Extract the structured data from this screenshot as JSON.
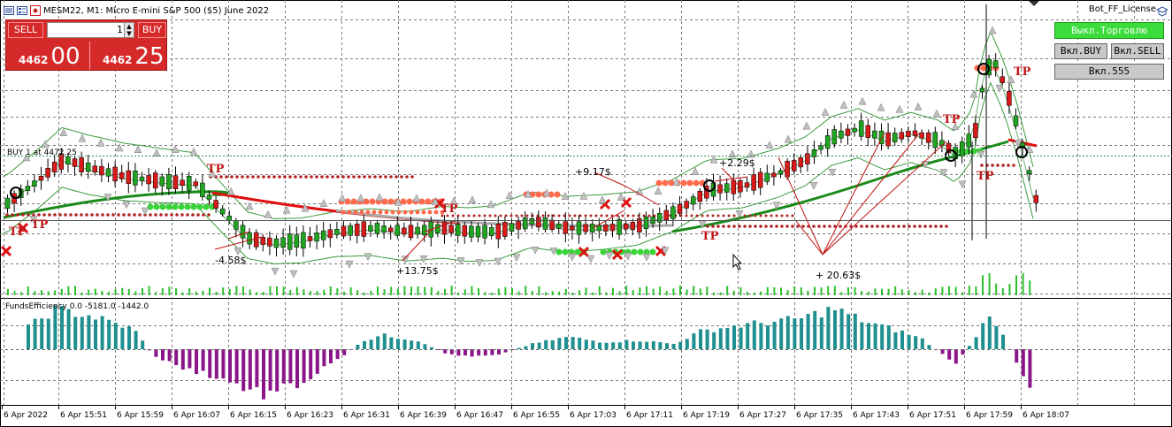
{
  "window": {
    "title": "MESM22, M1:  Micro E-mini S&P 500 ($5) June 2022",
    "license_label": "Bot_FF_License"
  },
  "trade_panel": {
    "sell_label": "SELL",
    "buy_label": "BUY",
    "lot_value": "1",
    "sell_price_small": "4462",
    "sell_price_big": "00",
    "buy_price_small": "4462",
    "buy_price_big": "25"
  },
  "bot_buttons": {
    "trading_off_label": "Выкл.Торговлю",
    "buy_on_label": "Вкл.BUY",
    "sell_on_label": "Вкл.SELL",
    "on_555_label": "Вкл.555"
  },
  "chart_annotations": {
    "position_line_label": "BUY 1 at 4472.25",
    "tp_label": "TP",
    "profit_labels": [
      "-4.58$",
      "+13.75$",
      "+9.17$",
      "+2.29$",
      "+ 20.63$"
    ]
  },
  "indicator": {
    "label": "FundsEfficiency 0.0 -5181.0 -1442.0"
  },
  "time_axis": {
    "labels": [
      "6 Apr 2022",
      "6 Apr 15:51",
      "6 Apr 15:59",
      "6 Apr 16:07",
      "6 Apr 16:15",
      "6 Apr 16:23",
      "6 Apr 16:31",
      "6 Apr 16:39",
      "6 Apr 16:47",
      "6 Apr 16:55",
      "6 Apr 17:03",
      "6 Apr 17:11",
      "6 Apr 17:19",
      "6 Apr 17:27",
      "6 Apr 17:35",
      "6 Apr 17:43",
      "6 Apr 17:51",
      "6 Apr 17:59",
      "6 Apr 18:07"
    ]
  },
  "colors": {
    "bull_candle": "#1fa51f",
    "bear_candle": "#d81a1a",
    "grid": "#7a7a7a",
    "ma_green": "#1a8a1a",
    "ma_red": "#e01010",
    "hist_pos": "#1f8f8f",
    "hist_neg": "#8a168a",
    "green_btn": "#3ddc3d",
    "gray_btn": "#c9c9c9"
  }
}
